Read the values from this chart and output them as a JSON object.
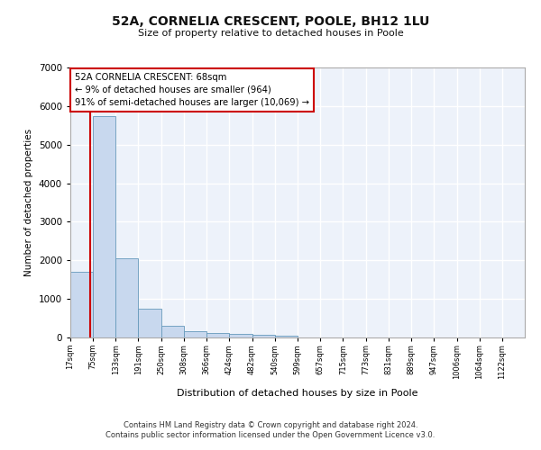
{
  "title": "52A, CORNELIA CRESCENT, POOLE, BH12 1LU",
  "subtitle": "Size of property relative to detached houses in Poole",
  "xlabel": "Distribution of detached houses by size in Poole",
  "ylabel": "Number of detached properties",
  "bar_color": "#c8d8ee",
  "bar_edge_color": "#6699bb",
  "background_color": "#edf2fa",
  "grid_color": "#ffffff",
  "property_line_color": "#cc0000",
  "property_size": 68,
  "annotation_text": "52A CORNELIA CRESCENT: 68sqm\n← 9% of detached houses are smaller (964)\n91% of semi-detached houses are larger (10,069) →",
  "footnote1": "Contains HM Land Registry data © Crown copyright and database right 2024.",
  "footnote2": "Contains public sector information licensed under the Open Government Licence v3.0.",
  "bin_edges": [
    17,
    75,
    133,
    191,
    250,
    308,
    366,
    424,
    482,
    540,
    599,
    657,
    715,
    773,
    831,
    889,
    947,
    1006,
    1064,
    1122,
    1180
  ],
  "counts": [
    1700,
    5750,
    2050,
    750,
    300,
    175,
    125,
    100,
    60,
    50,
    0,
    0,
    0,
    0,
    0,
    0,
    0,
    0,
    0,
    0
  ],
  "ylim": [
    0,
    7000
  ],
  "yticks": [
    0,
    1000,
    2000,
    3000,
    4000,
    5000,
    6000,
    7000
  ]
}
